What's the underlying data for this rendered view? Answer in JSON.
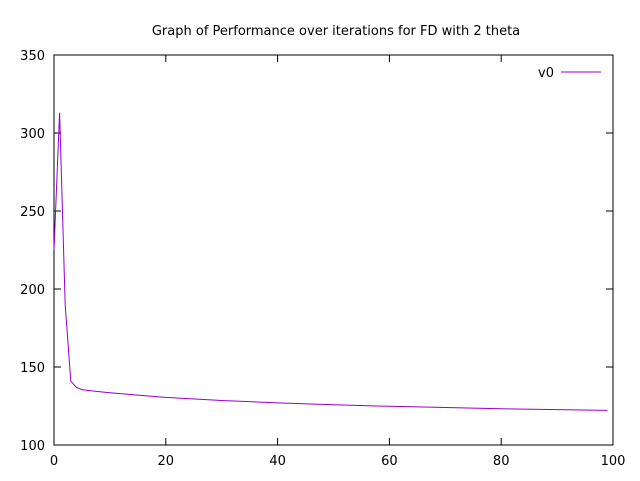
{
  "chart_data": {
    "type": "line",
    "title": "Graph of Performance over iterations for FD with 2 theta",
    "xlabel": "",
    "ylabel": "",
    "xlim": [
      0,
      100
    ],
    "ylim": [
      100,
      350
    ],
    "xticks": [
      0,
      20,
      40,
      60,
      80,
      100
    ],
    "yticks": [
      100,
      150,
      200,
      250,
      300,
      350
    ],
    "grid": false,
    "legend": "top-right",
    "series": [
      {
        "name": "v0",
        "color": "#9400d3",
        "x": [
          0,
          1,
          2,
          3,
          4,
          5,
          6,
          8,
          10,
          15,
          20,
          30,
          40,
          50,
          60,
          70,
          80,
          90,
          99
        ],
        "y": [
          225,
          313,
          190,
          141,
          137,
          135.5,
          135,
          134.2,
          133.5,
          132,
          130.5,
          128.5,
          127,
          125.8,
          124.8,
          124,
          123.2,
          122.7,
          122.2
        ]
      }
    ]
  }
}
